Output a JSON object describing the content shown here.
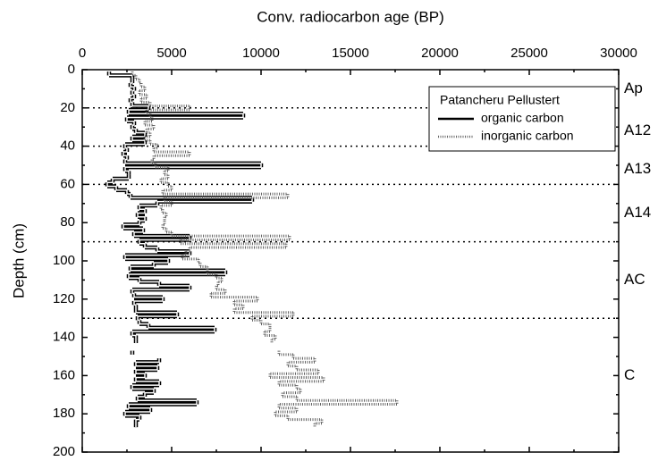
{
  "chart_data": {
    "type": "step",
    "xlabel": "Conv. radiocarbon age (BP)",
    "ylabel": "Depth (cm)",
    "xlim": [
      0,
      30000
    ],
    "xticks": [
      0,
      5000,
      10000,
      15000,
      20000,
      25000,
      30000
    ],
    "ylim": [
      0,
      200
    ],
    "yticks": [
      0,
      20,
      40,
      60,
      80,
      100,
      120,
      140,
      160,
      180,
      200
    ],
    "y_inverted": true,
    "x_axis_position": "top",
    "legend_title": "Patancheru Pellustert",
    "legend_position": "upper right",
    "boundaries": [
      20,
      40,
      60,
      90,
      130
    ],
    "horizons": [
      {
        "label": "Ap",
        "depth": 10
      },
      {
        "label": "A12",
        "depth": 32
      },
      {
        "label": "A13",
        "depth": 52
      },
      {
        "label": "A14",
        "depth": 75
      },
      {
        "label": "AC",
        "depth": 110
      },
      {
        "label": "C",
        "depth": 160
      }
    ],
    "depth": [
      2,
      4,
      6,
      8,
      10,
      12,
      14,
      16,
      18,
      20,
      22,
      24,
      26,
      28,
      30,
      32,
      34,
      36,
      38,
      40,
      42,
      44,
      46,
      48,
      50,
      52,
      54,
      56,
      58,
      60,
      62,
      64,
      66,
      68,
      70,
      72,
      74,
      76,
      78,
      80,
      82,
      84,
      86,
      88,
      90,
      92,
      94,
      96,
      98,
      100,
      102,
      104,
      106,
      108,
      110,
      112,
      114,
      116,
      118,
      120,
      122,
      124,
      126,
      128,
      130,
      132,
      134,
      136,
      138,
      140,
      142,
      144,
      146,
      148,
      150,
      152,
      154,
      156,
      158,
      160,
      162,
      164,
      166,
      168,
      170,
      172,
      174,
      176,
      178,
      180,
      182,
      184,
      186
    ],
    "series": [
      {
        "name": "organic carbon",
        "color": "#000000",
        "style": "double",
        "values": [
          1500,
          2800,
          2800,
          2700,
          2900,
          2800,
          2900,
          2700,
          2800,
          3700,
          2600,
          9000,
          2500,
          2900,
          2800,
          3000,
          3500,
          2800,
          3500,
          2400,
          2500,
          2300,
          2500,
          2400,
          10000,
          2400,
          2600,
          2600,
          1700,
          1400,
          1900,
          2500,
          2700,
          9500,
          4200,
          3200,
          3500,
          3100,
          3500,
          3200,
          2300,
          3400,
          2900,
          6000,
          3200,
          3500,
          4200,
          6000,
          2400,
          4800,
          4000,
          2700,
          8000,
          2600,
          3200,
          4300,
          6000,
          2800,
          2900,
          4500,
          2900,
          3000,
          3000,
          5300,
          3100,
          3200,
          3700,
          7400,
          2800,
          3000,
          3000,
          null,
          null,
          2800,
          null,
          4300,
          3000,
          4200,
          3000,
          3500,
          3000,
          4300,
          2800,
          4000,
          3500,
          3100,
          6400,
          2600,
          3800,
          2400,
          3200,
          3000,
          3000
        ]
      },
      {
        "name": "inorganic carbon",
        "color": "#666666",
        "style": "dotted",
        "values": [
          2800,
          3000,
          3200,
          3300,
          3500,
          3200,
          3600,
          3300,
          3800,
          6000,
          3600,
          3800,
          3900,
          3500,
          4000,
          3600,
          3800,
          3500,
          3800,
          4200,
          4000,
          6000,
          4000,
          3900,
          4100,
          4800,
          4600,
          4800,
          4400,
          4800,
          5000,
          4500,
          11500,
          4600,
          5000,
          4400,
          4500,
          4700,
          4600,
          4600,
          4500,
          4700,
          5000,
          11600,
          5500,
          11400,
          6000,
          5800,
          5600,
          6500,
          6600,
          7000,
          7000,
          7500,
          7800,
          7600,
          7500,
          8000,
          7200,
          9800,
          8500,
          9000,
          8500,
          11800,
          9500,
          10000,
          10500,
          10500,
          10200,
          10800,
          10600,
          null,
          null,
          11000,
          11800,
          13000,
          11500,
          12000,
          13200,
          10500,
          13500,
          11000,
          12000,
          12200,
          11200,
          12000,
          17600,
          11000,
          12000,
          10800,
          11500,
          13400,
          13000
        ]
      }
    ]
  }
}
